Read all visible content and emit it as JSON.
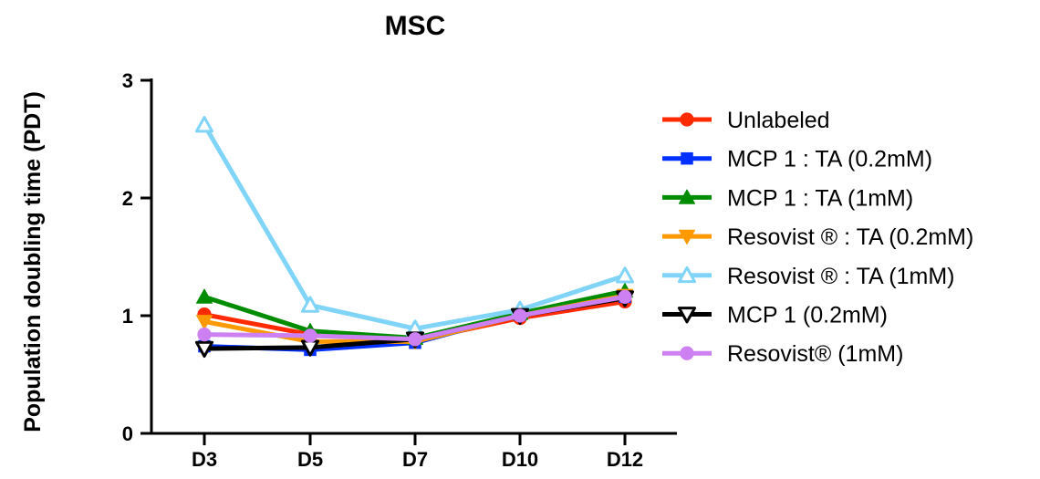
{
  "chart_data": {
    "type": "line",
    "title": "MSC",
    "xlabel": "",
    "ylabel": "Population doubling time (PDT)",
    "categories": [
      "D3",
      "D5",
      "D7",
      "D10",
      "D12"
    ],
    "ylim": [
      0,
      3
    ],
    "yticks": [
      "0",
      "1",
      "2",
      "3"
    ],
    "grid": false,
    "legend_position": "right",
    "series": [
      {
        "name": "Unlabeled",
        "color": "#ff2a00",
        "marker": "circle",
        "values": [
          1.01,
          0.84,
          0.79,
          0.98,
          1.12
        ]
      },
      {
        "name": "MCP 1 : TA (0.2mM)",
        "color": "#0030ff",
        "marker": "square",
        "values": [
          0.74,
          0.71,
          0.77,
          1.01,
          1.16
        ]
      },
      {
        "name": "MCP 1 : TA (1mM)",
        "color": "#008c00",
        "marker": "triangle-up",
        "values": [
          1.16,
          0.87,
          0.81,
          1.02,
          1.21
        ]
      },
      {
        "name": "Resovist ® : TA (0.2mM)",
        "color": "#ff9900",
        "marker": "triangle-down",
        "values": [
          0.95,
          0.78,
          0.78,
          1.0,
          1.17
        ]
      },
      {
        "name": "Resovist ® : TA (1mM)",
        "color": "#80d4f7",
        "marker": "triangle-up-open",
        "values": [
          2.62,
          1.09,
          0.89,
          1.05,
          1.34
        ]
      },
      {
        "name": "MCP 1 (0.2mM)",
        "color": "#000000",
        "marker": "triangle-down-open",
        "values": [
          0.72,
          0.73,
          0.8,
          1.0,
          1.15
        ]
      },
      {
        "name": "Resovist® (1mM)",
        "color": "#cc80f2",
        "marker": "circle",
        "values": [
          0.84,
          0.83,
          0.8,
          1.0,
          1.16
        ]
      }
    ]
  }
}
